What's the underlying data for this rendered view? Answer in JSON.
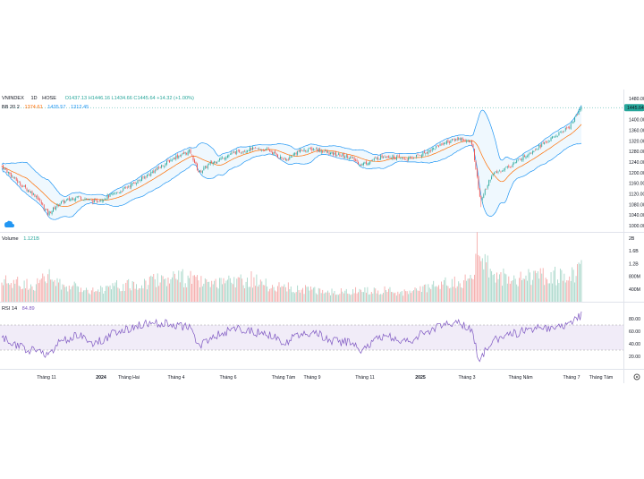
{
  "header": {
    "symbol": "VNINDEX",
    "interval": "1D",
    "exchange": "HOSE",
    "ohlc_text": "O1437.13  H1446.16  L1434.66  C1445.64  +14.32 (+1.00%)"
  },
  "bb_legend": {
    "label": "BB 20 2",
    "basis": "1374.61",
    "upper": "1435.57",
    "lower": "1312.45"
  },
  "volume_legend": {
    "label": "Volume",
    "value": "1.121B"
  },
  "rsi_legend": {
    "label": "RSI 14",
    "value": "84.89"
  },
  "colors": {
    "up": "#26a69a",
    "down": "#ef5350",
    "vol_up": "#a5d6c8",
    "vol_down": "#f5a9a8",
    "bb_band": "#2196f3",
    "bb_basis": "#ff6d00",
    "rsi_line": "#7e57c2",
    "rsi_fill": "#ede7f6",
    "price_tag": "#26a69a",
    "ohlc_text": "#26a69a",
    "bb_upper_text": "#2196f3",
    "bb_basis_text": "#ff6d00"
  },
  "price_axis": {
    "ticks": [
      "1480.00",
      "1440.00",
      "1400.00",
      "1360.00",
      "1320.00",
      "1280.00",
      "1240.00",
      "1200.00",
      "1160.00",
      "1120.00",
      "1080.00",
      "1040.00",
      "1000.00"
    ],
    "current_price_label": "1445.64"
  },
  "volume_axis": {
    "ticks": [
      "2B",
      "1.6B",
      "1.2B",
      "800M",
      "400M"
    ]
  },
  "rsi_axis": {
    "ticks": [
      "80.00",
      "60.00",
      "40.00",
      "20.00"
    ]
  },
  "time_axis": {
    "labels": [
      "Tháng 11",
      "2024",
      "Tháng Hai",
      "Tháng 4",
      "Tháng 6",
      "Tháng Tám",
      "Tháng 9",
      "Tháng 11",
      "2025",
      "Tháng 3",
      "Tháng Năm",
      "Tháng 7",
      "Tháng Tám"
    ],
    "bold": [
      "2024",
      "2025"
    ]
  },
  "chart_data": {
    "type": "candlestick",
    "title": "VNINDEX 1D HOSE",
    "price_range": [
      1000,
      1480
    ],
    "volume_range": [
      0,
      2000000000
    ],
    "rsi_range": [
      0,
      100
    ],
    "rsi_bands": [
      30,
      70
    ],
    "anchors": [
      {
        "x": 0.0,
        "close": 1225,
        "vol": 0.7,
        "rsi": 50
      },
      {
        "x": 0.03,
        "close": 1160,
        "vol": 0.65,
        "rsi": 35
      },
      {
        "x": 0.06,
        "close": 1110,
        "vol": 0.6,
        "rsi": 28
      },
      {
        "x": 0.08,
        "close": 1045,
        "vol": 0.9,
        "rsi": 24
      },
      {
        "x": 0.1,
        "close": 1085,
        "vol": 0.6,
        "rsi": 42
      },
      {
        "x": 0.13,
        "close": 1110,
        "vol": 0.5,
        "rsi": 55
      },
      {
        "x": 0.16,
        "close": 1090,
        "vol": 0.4,
        "rsi": 40
      },
      {
        "x": 0.2,
        "close": 1125,
        "vol": 0.55,
        "rsi": 60
      },
      {
        "x": 0.24,
        "close": 1175,
        "vol": 0.6,
        "rsi": 70
      },
      {
        "x": 0.265,
        "close": 1210,
        "vol": 0.8,
        "rsi": 74
      },
      {
        "x": 0.3,
        "close": 1260,
        "vol": 0.85,
        "rsi": 70
      },
      {
        "x": 0.325,
        "close": 1280,
        "vol": 0.8,
        "rsi": 66
      },
      {
        "x": 0.34,
        "close": 1200,
        "vol": 0.7,
        "rsi": 35
      },
      {
        "x": 0.36,
        "close": 1235,
        "vol": 0.55,
        "rsi": 50
      },
      {
        "x": 0.4,
        "close": 1275,
        "vol": 0.7,
        "rsi": 64
      },
      {
        "x": 0.43,
        "close": 1290,
        "vol": 0.8,
        "rsi": 60
      },
      {
        "x": 0.46,
        "close": 1285,
        "vol": 0.55,
        "rsi": 55
      },
      {
        "x": 0.49,
        "close": 1245,
        "vol": 0.5,
        "rsi": 40
      },
      {
        "x": 0.51,
        "close": 1280,
        "vol": 0.45,
        "rsi": 56
      },
      {
        "x": 0.54,
        "close": 1290,
        "vol": 0.4,
        "rsi": 58
      },
      {
        "x": 0.57,
        "close": 1270,
        "vol": 0.35,
        "rsi": 45
      },
      {
        "x": 0.6,
        "close": 1260,
        "vol": 0.35,
        "rsi": 42
      },
      {
        "x": 0.62,
        "close": 1230,
        "vol": 0.4,
        "rsi": 30
      },
      {
        "x": 0.66,
        "close": 1265,
        "vol": 0.4,
        "rsi": 55
      },
      {
        "x": 0.7,
        "close": 1250,
        "vol": 0.3,
        "rsi": 42
      },
      {
        "x": 0.73,
        "close": 1275,
        "vol": 0.45,
        "rsi": 58
      },
      {
        "x": 0.76,
        "close": 1310,
        "vol": 0.6,
        "rsi": 70
      },
      {
        "x": 0.79,
        "close": 1330,
        "vol": 0.7,
        "rsi": 72
      },
      {
        "x": 0.812,
        "close": 1310,
        "vol": 0.7,
        "rsi": 60
      },
      {
        "x": 0.82,
        "close": 1180,
        "vol": 1.8,
        "rsi": 25
      },
      {
        "x": 0.826,
        "close": 1090,
        "vol": 1.5,
        "rsi": 15
      },
      {
        "x": 0.845,
        "close": 1190,
        "vol": 1.0,
        "rsi": 45
      },
      {
        "x": 0.88,
        "close": 1230,
        "vol": 0.8,
        "rsi": 55
      },
      {
        "x": 0.92,
        "close": 1290,
        "vol": 0.9,
        "rsi": 66
      },
      {
        "x": 0.95,
        "close": 1330,
        "vol": 0.9,
        "rsi": 65
      },
      {
        "x": 0.98,
        "close": 1375,
        "vol": 0.9,
        "rsi": 72
      },
      {
        "x": 1.0,
        "close": 1445.64,
        "vol": 1.121,
        "rsi": 84.89
      }
    ]
  }
}
